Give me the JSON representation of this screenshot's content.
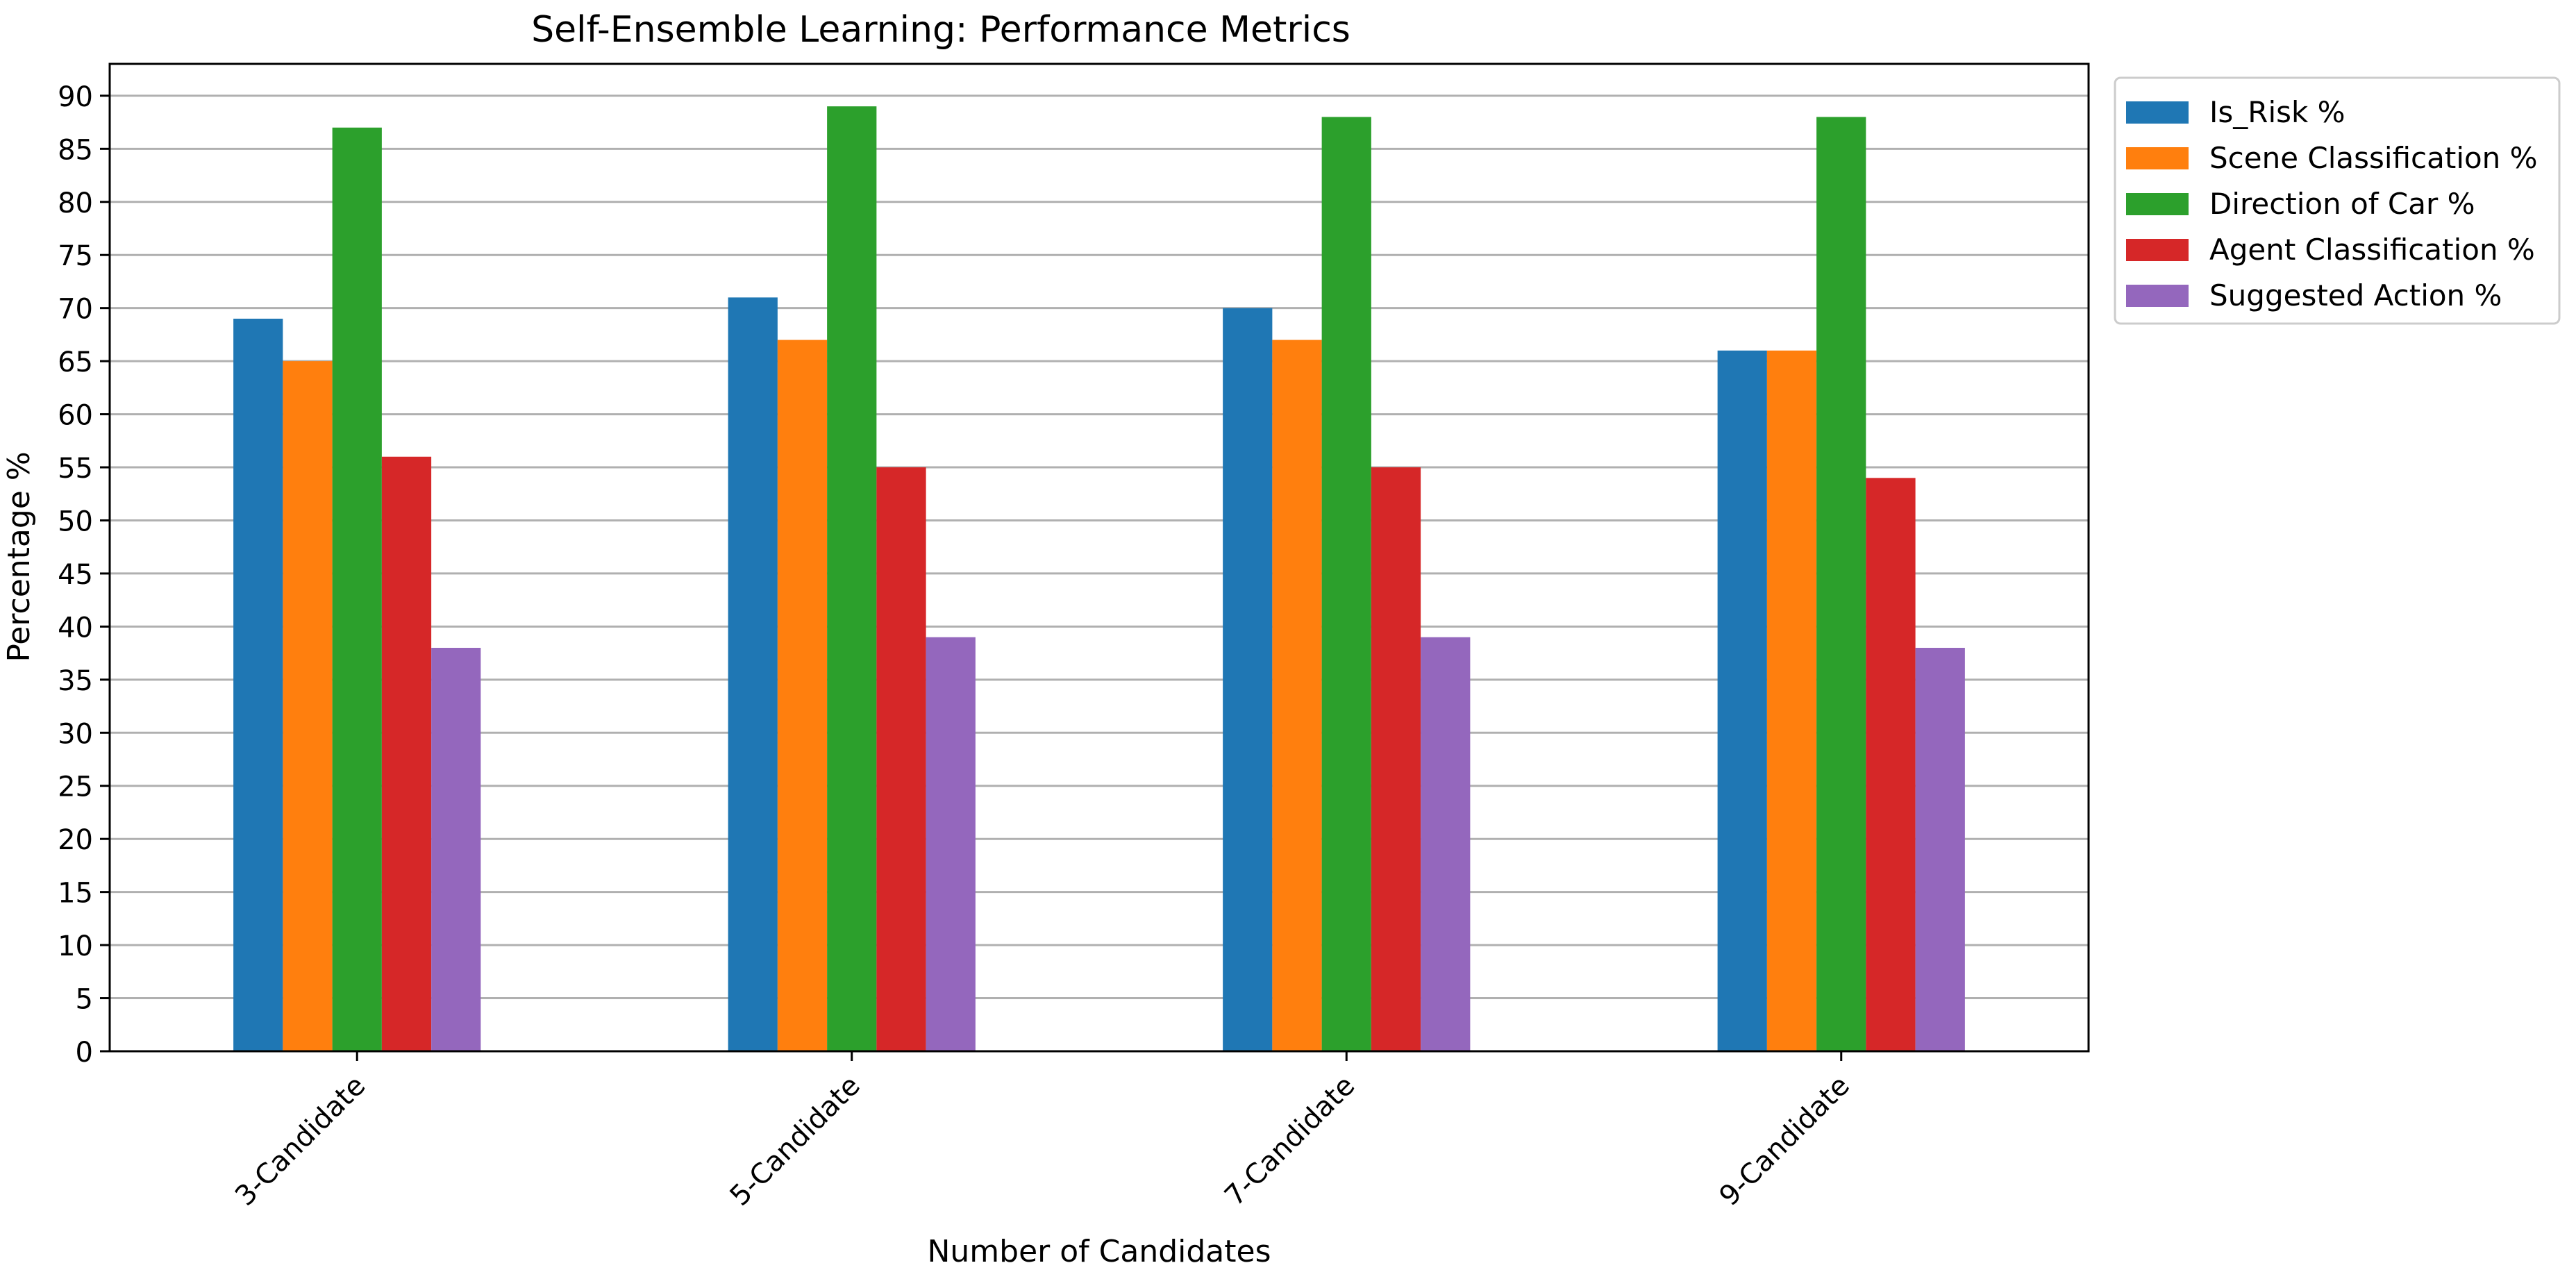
{
  "chart_data": {
    "type": "bar",
    "title": "Self-Ensemble Learning: Performance Metrics",
    "xlabel": "Number of Candidates",
    "ylabel": "Percentage %",
    "categories": [
      "3-Candidate",
      "5-Candidate",
      "7-Candidate",
      "9-Candidate"
    ],
    "ylim": [
      0,
      93
    ],
    "yticks": [
      "0",
      "5",
      "10",
      "15",
      "20",
      "25",
      "30",
      "35",
      "40",
      "45",
      "50",
      "55",
      "60",
      "65",
      "70",
      "75",
      "80",
      "85",
      "90"
    ],
    "grid": "horizontal",
    "legend_position": "outside-top-right",
    "series": [
      {
        "name": "Is_Risk %",
        "color": "#1f77b4",
        "values": [
          69,
          71,
          70,
          66
        ]
      },
      {
        "name": "Scene Classification %",
        "color": "#ff7f0e",
        "values": [
          65,
          67,
          67,
          66
        ]
      },
      {
        "name": "Direction of Car %",
        "color": "#2ca02c",
        "values": [
          87,
          89,
          88,
          88
        ]
      },
      {
        "name": "Agent Classification %",
        "color": "#d62728",
        "values": [
          56,
          55,
          55,
          54
        ]
      },
      {
        "name": "Suggested Action %",
        "color": "#9467bd",
        "values": [
          38,
          39,
          39,
          38
        ]
      }
    ]
  }
}
